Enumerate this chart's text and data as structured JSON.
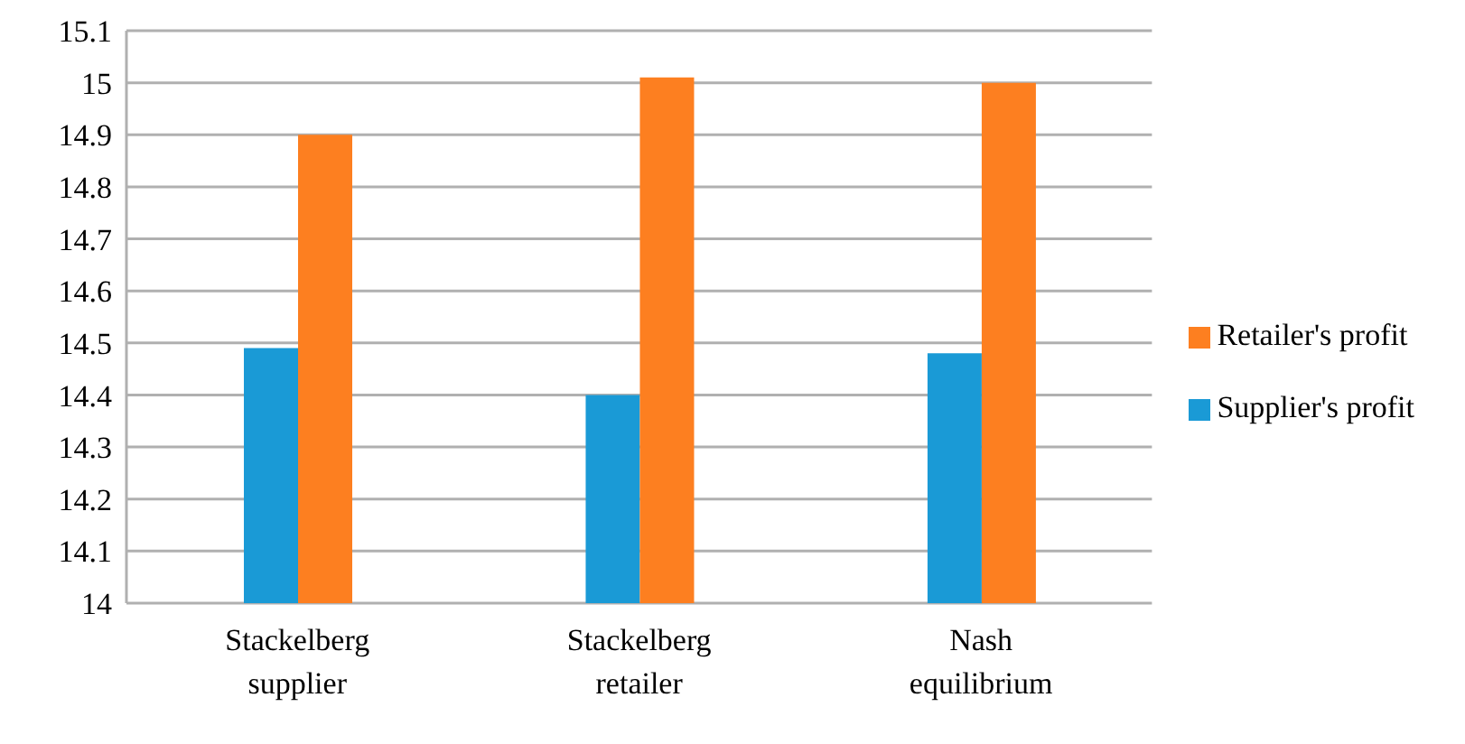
{
  "chart_data": {
    "type": "bar",
    "categories": [
      "Stackelberg supplier",
      "Stackelberg retailer",
      "Nash equilibrium"
    ],
    "series": [
      {
        "name": "Supplier's profit",
        "color": "#1a9ad6",
        "values": [
          14.49,
          14.4,
          14.48
        ]
      },
      {
        "name": "Retailer's profit",
        "color": "#fd7f20",
        "values": [
          14.9,
          15.01,
          15.0
        ]
      }
    ],
    "ylim": [
      14,
      15.1
    ],
    "yticks": [
      14,
      14.1,
      14.2,
      14.3,
      14.4,
      14.5,
      14.6,
      14.7,
      14.8,
      14.9,
      15,
      15.1
    ],
    "grid": "y",
    "legend": "right"
  }
}
